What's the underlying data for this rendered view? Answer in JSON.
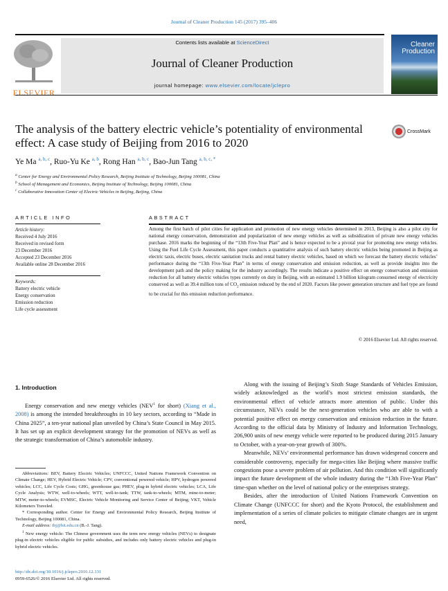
{
  "header": {
    "journal_ref": "Journal of Cleaner Production 145 (2017) 395–406",
    "contents_prefix": "Contents lists available at ",
    "contents_link": "ScienceDirect",
    "journal_title": "Journal of Cleaner Production",
    "homepage_prefix": "journal homepage: ",
    "homepage_link": "www.elsevier.com/locate/jclepro",
    "publisher": "ELSEVIER",
    "cover_title_1": "Cleaner",
    "cover_title_2": "Production",
    "crossmark": "CrossMark"
  },
  "article": {
    "title": "The analysis of the battery electric vehicle’s potentiality of environmental effect: A case study of Beijing from 2016 to 2020",
    "authors": [
      {
        "name": "Ye Ma",
        "sup": "a, b, c"
      },
      {
        "name": "Ruo-Yu Ke",
        "sup": "a, b"
      },
      {
        "name": "Rong Han",
        "sup": "a, b, c"
      },
      {
        "name": "Bao-Jun Tang",
        "sup": "a, b, c, *"
      }
    ],
    "affiliations": [
      {
        "sup": "a",
        "text": "Center for Energy and Environmental Policy Research, Beijing Institute of Technology, Beijing 100081, China"
      },
      {
        "sup": "b",
        "text": "School of Management and Economics, Beijing Institute of Technology, Beijing 100081, China"
      },
      {
        "sup": "c",
        "text": "Collaborative Innovation Center of Electric Vehicles in Beijing, Beijing, China"
      }
    ]
  },
  "article_info": {
    "heading": "ARTICLE INFO",
    "history_label": "Article history:",
    "history": [
      "Received 4 July 2016",
      "Received in revised form",
      "23 December 2016",
      "Accepted 23 December 2016",
      "Available online 28 December 2016"
    ],
    "keywords_label": "Keywords:",
    "keywords": [
      "Battery electric vehicle",
      "Energy conservation",
      "Emission reduction",
      "Life cycle assessment"
    ]
  },
  "abstract": {
    "heading": "ABSTRACT",
    "text_1": "Among the first batch of pilot cities for application and promotion of new energy vehicles determined in 2013, Beijing is also a pilot city for national energy conservation, demonstration and popularization of new energy vehicles as well as subsidization of private new energy vehicles purchase. 2016 marks the beginning of the “13th Five-Year Plan” and is hence expected to be a pivotal year for promoting new energy vehicles. Using the Fuel Life Cycle Assessment, this paper conducts a quantitative analysis of such battery electric vehicles being promoted in Beijing as electric taxis, electric buses, electric sanitation trucks and rental battery electric vehicles, based on which we forecast the battery electric vehicles’ performance during the “13th Five-Year Plan” in terms of energy conservation and emission reduction, as well as provide insights into the development path and the policy making for the industry accordingly. The results indicate a positive effect on energy conservation and emission reduction for all battery electric vehicles types currently on duty in Beijing, with an estimated 1.9 billion kilogram consumed energy of electricity conserved as well as 39.4 million tons of CO",
    "sub": "2",
    "text_2": " emission reduced by the end of 2020. Factors like power generation structure and fuel type are found to be crucial for this emission reduction performance.",
    "copyright": "© 2016 Elsevier Ltd. All rights reserved."
  },
  "intro": {
    "heading": "1.  Introduction",
    "p1_a": "Energy conservation and new energy vehicles (NEV",
    "p1_sup": "1",
    "p1_b": " for short) ",
    "p1_link": "(Xiang et al., 2008)",
    "p1_c": " is among the intended breakthroughs in 10 key sectors, according to “Made in China 2025”, a ten-year national plan unveiled by China’s State Council in May 2015. It has set up an explicit development strategy for the promotion of NEVs as well as the strategic transformation of China’s automobile industry.",
    "p2": "Along with the issuing of Beijing’s Sixth Stage Standards of Vehicles Emission, widely acknowledged as the world’s most strictest emission standards, the environmental effect of vehicle attracts more attention of public. Under this circumstance, NEVs could be the next-generation vehicles who are able to with a potential positive effect on energy conservation and emission reduction in the future. According to the official data by Ministry of Industry and Information Technology, 206,900 units of new energy vehicle were reported to be produced during 2015 January to October, with a year-on-year growth of 300%.",
    "p3": "Meanwhile, NEVs’ environmental performance has drawn widespread concern and considerable controversy, especially for mega-cities like Beijing where massive traffic congestions pose a severe problem of air pollution. And this condition will significantly impact the future development of the whole industry during the “13th Five-Year Plan” time-span whether on the level of national policy or the enterprises strategy.",
    "p4": "Besides, after the introduction of United Nations Framework Convention on Climate Change (UNFCCC for short) and the Kyoto Protocol, the establishment and implementation of a series of climate policies to mitigate climate changes are in urgent need,"
  },
  "footnotes": {
    "abbr_label": "Abbreviations:",
    "abbr": " BEV, Battery Electric Vehicles; UNFCCC, United Nations Framework Convention on Climate Change; HEV, Hybrid Electric Vehicle; CPV, conventional powered vehicle; HPV, hydrogen powered vehicles; LCC, Life Cycle Costs; GHG, greenhouse gas; PHEV, plug-in hybrid electric vehicles; LCA, Life Cycle Analysis; WTW, well-to-wheels; WTT, well-to-tank; TTW, tank-to-wheels; MTM, mine-to-meter; MTW, meter-to-wheels; EVMSC, Electric Vehicle Monitoring and Service Center of Beijing; VKT, Vehicle Kilometers Traveled.",
    "corresponding": "* Corresponding author. Center for Energy and Environmental Policy Research, Beijing Institute of Technology, Beijing 100081, China.",
    "email_label": "E-mail address: ",
    "email": "tbj@bit.edu.cn",
    "email_suffix": " (B.-J. Tang).",
    "fn1_sup": "1",
    "fn1": " New energy vehicle: The Chinese government uses the term new energy vehicles (NEVs) to designate plug-in electric vehicles eligible for public subsidies, and includes only battery electric vehicles and plug-in hybrid electric vehicles.",
    "doi": "http://dx.doi.org/10.1016/j.jclepro.2016.12.131",
    "issn": "0959-6526/© 2016 Elsevier Ltd. All rights reserved."
  },
  "colors": {
    "link": "#2a6fb0",
    "publisher_orange": "#e87722",
    "header_box": "#e6e6e6"
  }
}
